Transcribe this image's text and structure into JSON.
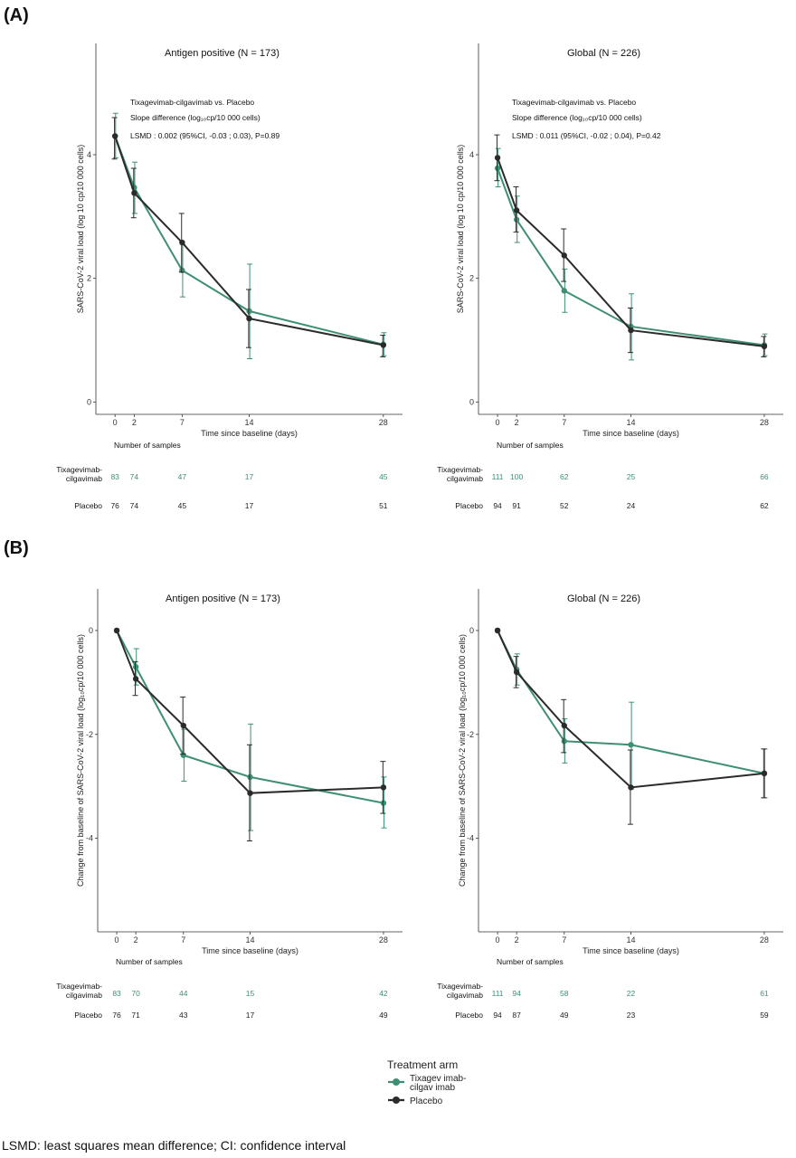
{
  "panel_labels": [
    "(A)",
    "(B)"
  ],
  "colors": {
    "treatment": "#3f8f73",
    "placebo": "#2b2b2b"
  },
  "legend": {
    "title": "Treatment arm",
    "items": [
      {
        "label_lines": [
          "Tixagev imab-",
          "cilgav imab"
        ],
        "color": "#3f8f73"
      },
      {
        "label_lines": [
          "Placebo"
        ],
        "color": "#2b2b2b"
      }
    ]
  },
  "footnote": "LSMD: least squares mean difference; CI: confidence interval",
  "chart_data": [
    {
      "id": "A-antigen",
      "type": "line",
      "title": "Antigen positive (N = 173)",
      "xlabel": "Time since baseline (days)",
      "ylabel": "SARS-CoV-2 viral load (log 10 cp/10 000 cells)",
      "xlim": [
        -2,
        30
      ],
      "ylim": [
        -0.2,
        5.8
      ],
      "xticks": [
        0,
        2,
        7,
        14,
        28
      ],
      "yticks": [
        0,
        2,
        4
      ],
      "annotation_lines": [
        "Tixagevimab-cilgavimab vs. Placebo",
        "Slope difference (log₁₀cp/10 000 cells)",
        "LSMD : 0.002 (95%CI, -0.03 ; 0.03), P=0.89"
      ],
      "x": [
        0,
        2,
        7,
        14,
        28
      ],
      "series": [
        {
          "name": "Tixagevimab-cilgavimab",
          "values": [
            4.3,
            3.47,
            2.13,
            1.47,
            0.93
          ],
          "lower": [
            3.95,
            3.05,
            1.7,
            0.7,
            0.75
          ],
          "upper": [
            4.67,
            3.88,
            2.55,
            2.23,
            1.12
          ]
        },
        {
          "name": "Placebo",
          "values": [
            4.3,
            3.38,
            2.58,
            1.35,
            0.92
          ],
          "lower": [
            3.93,
            2.98,
            2.1,
            0.88,
            0.73
          ],
          "upper": [
            4.6,
            3.78,
            3.05,
            1.82,
            1.08
          ]
        }
      ],
      "samples": {
        "header": "Number of samples",
        "rows": [
          {
            "name_lines": [
              "Tixagevimab-",
              "cilgavimab"
            ],
            "values": [
              "83",
              "74",
              "47",
              "17",
              "45"
            ]
          },
          {
            "name_lines": [
              "Placebo"
            ],
            "values": [
              "76",
              "74",
              "45",
              "17",
              "51"
            ]
          }
        ]
      }
    },
    {
      "id": "A-global",
      "type": "line",
      "title": "Global (N = 226)",
      "xlabel": "Time since baseline (days)",
      "ylabel": "SARS-CoV-2 viral load (log 10 cp/10 000 cells)",
      "xlim": [
        -2,
        30
      ],
      "ylim": [
        -0.2,
        5.8
      ],
      "xticks": [
        0,
        2,
        7,
        14,
        28
      ],
      "yticks": [
        0,
        2,
        4
      ],
      "annotation_lines": [
        "Tixagevimab-cilgavimab vs. Placebo",
        "Slope difference (log₁₀cp/10 000 cells)",
        "LSMD : 0.011 (95%CI, -0.02 ; 0.04), P=0.42"
      ],
      "x": [
        0,
        2,
        7,
        14,
        28
      ],
      "series": [
        {
          "name": "Tixagevimab-cilgavimab",
          "values": [
            3.78,
            2.95,
            1.8,
            1.22,
            0.92
          ],
          "lower": [
            3.48,
            2.58,
            1.45,
            0.68,
            0.75
          ],
          "upper": [
            4.1,
            3.33,
            2.15,
            1.75,
            1.1
          ]
        },
        {
          "name": "Placebo",
          "values": [
            3.95,
            3.1,
            2.37,
            1.16,
            0.9
          ],
          "lower": [
            3.58,
            2.75,
            1.95,
            0.8,
            0.73
          ],
          "upper": [
            4.32,
            3.48,
            2.8,
            1.52,
            1.06
          ]
        }
      ],
      "samples": {
        "header": "Number of samples",
        "rows": [
          {
            "name_lines": [
              "Tixagevimab-",
              "cilgavimab"
            ],
            "values": [
              "111",
              "100",
              "62",
              "25",
              "66"
            ]
          },
          {
            "name_lines": [
              "Placebo"
            ],
            "values": [
              "94",
              "91",
              "52",
              "24",
              "62"
            ]
          }
        ]
      }
    },
    {
      "id": "B-antigen",
      "type": "line",
      "title": "Antigen positive (N = 173)",
      "xlabel": "Time since baseline (days)",
      "ylabel": "Change from baseline of SARS-CoV-2 viral load (log₁₀cp/10 000 cells)",
      "xlim": [
        -2,
        30
      ],
      "ylim": [
        -5.8,
        0.8
      ],
      "xticks": [
        0,
        2,
        7,
        14,
        28
      ],
      "yticks": [
        -4,
        -2,
        0
      ],
      "annotation_lines": [],
      "x": [
        0,
        2,
        7,
        14,
        28
      ],
      "series": [
        {
          "name": "Tixagevimab-cilgavimab",
          "values": [
            0,
            -0.7,
            -2.4,
            -2.82,
            -3.32
          ],
          "lower": [
            0,
            -1.05,
            -2.9,
            -3.85,
            -3.8
          ],
          "upper": [
            0,
            -0.35,
            -1.9,
            -1.8,
            -2.82
          ]
        },
        {
          "name": "Placebo",
          "values": [
            0,
            -0.93,
            -1.83,
            -3.13,
            -3.02
          ],
          "lower": [
            0,
            -1.25,
            -2.38,
            -4.05,
            -3.52
          ],
          "upper": [
            0,
            -0.6,
            -1.28,
            -2.2,
            -2.52
          ]
        }
      ],
      "samples": {
        "header": "Number of samples",
        "rows": [
          {
            "name_lines": [
              "Tixagevimab-",
              "cilgavimab"
            ],
            "values": [
              "83",
              "70",
              "44",
              "15",
              "42"
            ]
          },
          {
            "name_lines": [
              "Placebo"
            ],
            "values": [
              "76",
              "71",
              "43",
              "17",
              "49"
            ]
          }
        ]
      }
    },
    {
      "id": "B-global",
      "type": "line",
      "title": "Global (N = 226)",
      "xlabel": "Time since baseline (days)",
      "ylabel": "Change from baseline of SARS-CoV-2 viral load (log₁₀cp/10 000 cells)",
      "xlim": [
        -2,
        30
      ],
      "ylim": [
        -5.8,
        0.8
      ],
      "xticks": [
        0,
        2,
        7,
        14,
        28
      ],
      "yticks": [
        -4,
        -2,
        0
      ],
      "annotation_lines": [],
      "x": [
        0,
        2,
        7,
        14,
        28
      ],
      "series": [
        {
          "name": "Tixagevimab-cilgavimab",
          "values": [
            0,
            -0.75,
            -2.13,
            -2.2,
            -2.75
          ],
          "lower": [
            0,
            -1.05,
            -2.55,
            -3.05,
            -3.22
          ],
          "upper": [
            0,
            -0.45,
            -1.7,
            -1.38,
            -2.28
          ]
        },
        {
          "name": "Placebo",
          "values": [
            0,
            -0.8,
            -1.83,
            -3.02,
            -2.75
          ],
          "lower": [
            0,
            -1.1,
            -2.35,
            -3.73,
            -3.22
          ],
          "upper": [
            0,
            -0.5,
            -1.33,
            -2.3,
            -2.28
          ]
        }
      ],
      "samples": {
        "header": "Number of samples",
        "rows": [
          {
            "name_lines": [
              "Tixagevimab-",
              "cilgavimab"
            ],
            "values": [
              "111",
              "94",
              "58",
              "22",
              "61"
            ]
          },
          {
            "name_lines": [
              "Placebo"
            ],
            "values": [
              "94",
              "87",
              "49",
              "23",
              "59"
            ]
          }
        ]
      }
    }
  ]
}
